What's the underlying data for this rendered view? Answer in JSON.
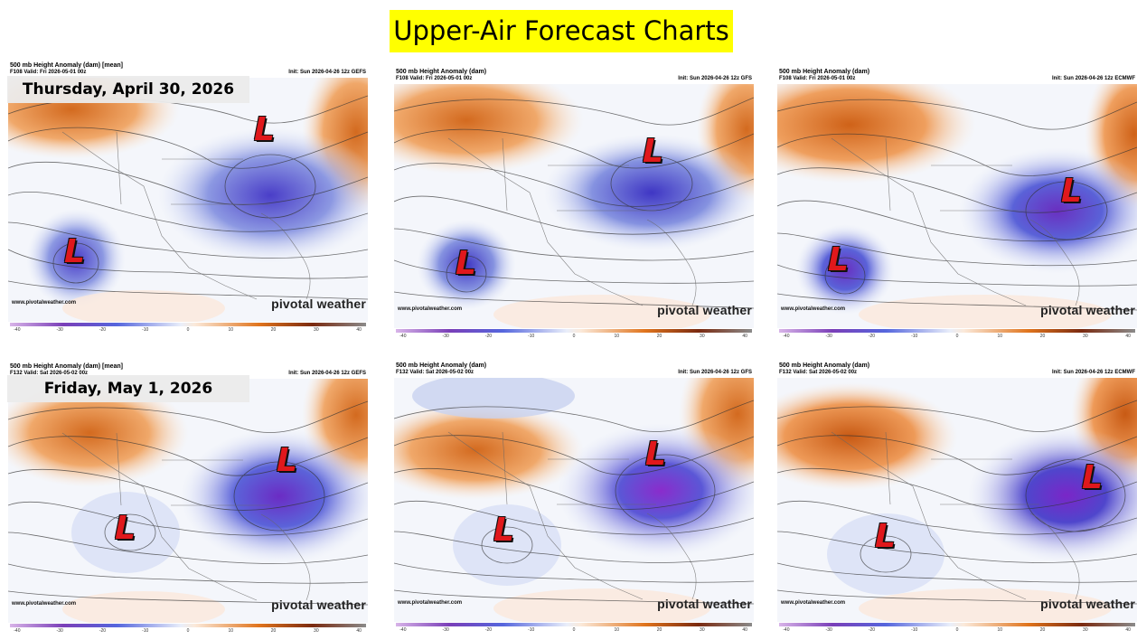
{
  "title": "Upper-Air Forecast Charts",
  "date_labels": [
    "Thursday, April 30, 2026",
    "Friday, May 1, 2026"
  ],
  "site": "www.pivotalweather.com",
  "brand": "pivotal weather",
  "colorbar_ticks": [
    "-40",
    "-30",
    "-20",
    "-10",
    "0",
    "10",
    "20",
    "30",
    "40"
  ],
  "low_symbol": "L",
  "panels": [
    {
      "title": "500 mb Height Anomaly (dam) [mean]",
      "valid": "F108 Valid: Fri 2026-05-01 00z",
      "init": "Init: Sun 2026-04-26 12z GEFS"
    },
    {
      "title": "500 mb Height Anomaly (dam)",
      "valid": "F108 Valid: Fri 2026-05-01 00z",
      "init": "Init: Sun 2026-04-26 12z GFS"
    },
    {
      "title": "500 mb Height Anomaly (dam)",
      "valid": "F108 Valid: Fri 2026-05-01 00z",
      "init": "Init: Sun 2026-04-26 12z ECMWF"
    },
    {
      "title": "500 mb Height Anomaly (dam) [mean]",
      "valid": "F132 Valid: Sat 2026-05-02 00z",
      "init": "Init: Sun 2026-04-26 12z GEFS"
    },
    {
      "title": "500 mb Height Anomaly (dam)",
      "valid": "F132 Valid: Sat 2026-05-02 00z",
      "init": "Init: Sun 2026-04-26 12z GFS"
    },
    {
      "title": "500 mb Height Anomaly (dam)",
      "valid": "F132 Valid: Sat 2026-05-02 00z",
      "init": "Init: Sun 2026-04-26 12z ECMWF"
    }
  ],
  "colors": {
    "title_bg": "#ffff00",
    "low_red": "#e0181c",
    "ridge": "#e07a2c",
    "trough": "#5a46d0"
  }
}
